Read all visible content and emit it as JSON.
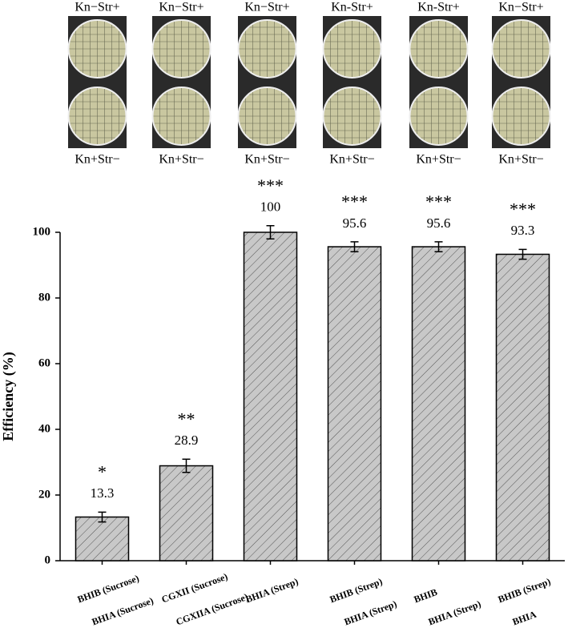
{
  "plates": [
    {
      "top_label": "Kn−Str+",
      "bottom_label": "Kn+Str−"
    },
    {
      "top_label": "Kn−Str+",
      "bottom_label": "Kn+Str−"
    },
    {
      "top_label": "Kn−Str+",
      "bottom_label": "Kn+Str−"
    },
    {
      "top_label": "Kn-Str+",
      "bottom_label": "Kn+Str−"
    },
    {
      "top_label": "Kn-Str+",
      "bottom_label": "Kn+Str−"
    },
    {
      "top_label": "Kn−Str+",
      "bottom_label": "Kn+Str−"
    }
  ],
  "chart_data": {
    "type": "bar",
    "y_label": "Efficiency (%)",
    "categories": [
      [
        "BHIB (Sucrose)",
        "BHIA (Sucrose)"
      ],
      [
        "CGXII (Sucrose)",
        "CGXIIA (Sucrose)"
      ],
      [
        "BHIA (Strep)"
      ],
      [
        "BHIB (Strep)",
        "BHIA (Strep)"
      ],
      [
        "BHIB",
        "BHIA (Strep)"
      ],
      [
        "BHIB (Strep)",
        "BHIA"
      ]
    ],
    "values": [
      13.3,
      28.9,
      100,
      95.6,
      95.6,
      93.3
    ],
    "errors": [
      1.5,
      2,
      2,
      1.5,
      1.5,
      1.5
    ],
    "annotations": [
      "*",
      "**",
      "***",
      "***",
      "***",
      "***"
    ],
    "color": "#c8c8c8",
    "ylim": [
      0,
      100
    ],
    "yticks": [
      0,
      20,
      40,
      60,
      80,
      100
    ]
  }
}
